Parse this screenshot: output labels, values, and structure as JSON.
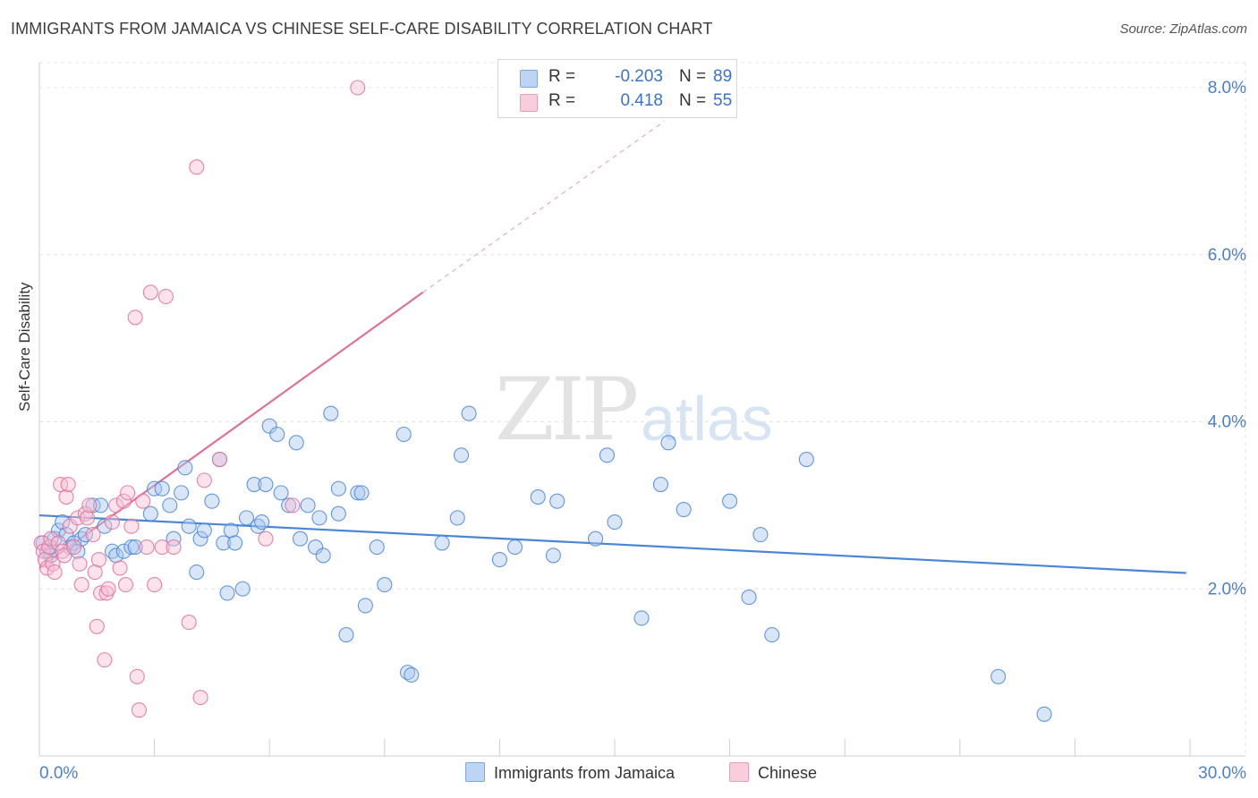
{
  "title": "IMMIGRANTS FROM JAMAICA VS CHINESE SELF-CARE DISABILITY CORRELATION CHART",
  "source": "Source: ZipAtlas.com",
  "watermark": {
    "zip": "ZIP",
    "atlas": "atlas"
  },
  "stats": [
    {
      "r_label": "R =",
      "r_value": "-0.203",
      "n_label": "N =",
      "n_value": "89",
      "color": "#9dc1ef"
    },
    {
      "r_label": "R =",
      "r_value": "0.418",
      "n_label": "N =",
      "n_value": "55",
      "color": "#f5b3c8"
    }
  ],
  "chart_data": {
    "type": "scatter",
    "title": "IMMIGRANTS FROM JAMAICA VS CHINESE SELF-CARE DISABILITY CORRELATION CHART",
    "xlabel": "",
    "ylabel": "Self-Care Disability",
    "xlim": [
      0,
      30
    ],
    "ylim": [
      0,
      8.3
    ],
    "x_tick_labels": [
      "0.0%",
      "30.0%"
    ],
    "y_ticks": [
      2,
      4,
      6,
      8
    ],
    "y_tick_labels": [
      "2.0%",
      "4.0%",
      "6.0%",
      "8.0%"
    ],
    "grid": true,
    "legend": [
      "Immigrants from Jamaica",
      "Chinese"
    ],
    "series": [
      {
        "name": "Immigrants from Jamaica",
        "color": "#4a86d8",
        "fill": "#a9c8f0",
        "trend": {
          "x0": 0,
          "y0": 2.88,
          "x1": 29.9,
          "y1": 2.19
        },
        "points": [
          [
            0.1,
            2.55
          ],
          [
            0.2,
            2.45
          ],
          [
            0.3,
            2.5
          ],
          [
            0.4,
            2.6
          ],
          [
            0.5,
            2.7
          ],
          [
            0.6,
            2.8
          ],
          [
            0.7,
            2.65
          ],
          [
            0.8,
            2.5
          ],
          [
            0.9,
            2.55
          ],
          [
            1.0,
            2.45
          ],
          [
            1.1,
            2.6
          ],
          [
            1.2,
            2.65
          ],
          [
            1.4,
            3.0
          ],
          [
            1.6,
            3.0
          ],
          [
            1.7,
            2.75
          ],
          [
            1.9,
            2.45
          ],
          [
            2.0,
            2.4
          ],
          [
            2.2,
            2.45
          ],
          [
            2.4,
            2.5
          ],
          [
            2.5,
            2.5
          ],
          [
            2.9,
            2.9
          ],
          [
            3.0,
            3.2
          ],
          [
            3.2,
            3.2
          ],
          [
            3.4,
            3.0
          ],
          [
            3.5,
            2.6
          ],
          [
            3.7,
            3.15
          ],
          [
            3.8,
            3.45
          ],
          [
            3.9,
            2.75
          ],
          [
            4.1,
            2.2
          ],
          [
            4.2,
            2.6
          ],
          [
            4.3,
            2.7
          ],
          [
            4.5,
            3.05
          ],
          [
            4.7,
            3.55
          ],
          [
            4.8,
            2.55
          ],
          [
            4.9,
            1.95
          ],
          [
            5.0,
            2.7
          ],
          [
            5.1,
            2.55
          ],
          [
            5.3,
            2.0
          ],
          [
            5.4,
            2.85
          ],
          [
            5.6,
            3.25
          ],
          [
            5.7,
            2.75
          ],
          [
            5.8,
            2.8
          ],
          [
            5.9,
            3.25
          ],
          [
            6.0,
            3.95
          ],
          [
            6.2,
            3.85
          ],
          [
            6.3,
            3.15
          ],
          [
            6.5,
            3.0
          ],
          [
            6.7,
            3.75
          ],
          [
            6.8,
            2.6
          ],
          [
            7.0,
            3.0
          ],
          [
            7.2,
            2.5
          ],
          [
            7.3,
            2.85
          ],
          [
            7.4,
            2.4
          ],
          [
            7.6,
            4.1
          ],
          [
            7.8,
            2.9
          ],
          [
            7.8,
            3.2
          ],
          [
            8.0,
            1.45
          ],
          [
            8.3,
            3.15
          ],
          [
            8.4,
            3.15
          ],
          [
            8.5,
            1.8
          ],
          [
            8.8,
            2.5
          ],
          [
            9.0,
            2.05
          ],
          [
            9.5,
            3.85
          ],
          [
            9.6,
            1.0
          ],
          [
            9.7,
            0.97
          ],
          [
            10.5,
            2.55
          ],
          [
            10.9,
            2.85
          ],
          [
            11.0,
            3.6
          ],
          [
            11.2,
            4.1
          ],
          [
            12.0,
            2.35
          ],
          [
            12.4,
            2.5
          ],
          [
            13.0,
            3.1
          ],
          [
            13.4,
            2.4
          ],
          [
            13.5,
            3.05
          ],
          [
            14.5,
            2.6
          ],
          [
            14.8,
            3.6
          ],
          [
            15.0,
            2.8
          ],
          [
            15.7,
            1.65
          ],
          [
            16.2,
            3.25
          ],
          [
            16.4,
            3.75
          ],
          [
            16.8,
            2.95
          ],
          [
            18.0,
            3.05
          ],
          [
            18.5,
            1.9
          ],
          [
            18.8,
            2.65
          ],
          [
            19.1,
            1.45
          ],
          [
            20.0,
            3.55
          ],
          [
            25.0,
            0.95
          ],
          [
            26.2,
            0.5
          ],
          [
            0.3,
            2.4
          ]
        ]
      },
      {
        "name": "Chinese",
        "color": "#e0709a",
        "fill": "#f7bfd2",
        "trend": {
          "x0": 0,
          "y0": 2.25,
          "x1": 10,
          "y1": 5.55
        },
        "trend_dashed": {
          "x0": 10,
          "y0": 5.55,
          "x1": 16.3,
          "y1": 7.6
        },
        "points": [
          [
            0.05,
            2.55
          ],
          [
            0.1,
            2.45
          ],
          [
            0.15,
            2.35
          ],
          [
            0.2,
            2.25
          ],
          [
            0.25,
            2.5
          ],
          [
            0.3,
            2.6
          ],
          [
            0.35,
            2.3
          ],
          [
            0.4,
            2.2
          ],
          [
            0.5,
            2.55
          ],
          [
            0.55,
            3.25
          ],
          [
            0.6,
            2.45
          ],
          [
            0.65,
            2.4
          ],
          [
            0.7,
            3.1
          ],
          [
            0.75,
            3.25
          ],
          [
            0.8,
            2.75
          ],
          [
            0.9,
            2.5
          ],
          [
            1.0,
            2.85
          ],
          [
            1.05,
            2.3
          ],
          [
            1.1,
            2.05
          ],
          [
            1.2,
            2.9
          ],
          [
            1.25,
            2.85
          ],
          [
            1.3,
            3.0
          ],
          [
            1.4,
            2.65
          ],
          [
            1.45,
            2.2
          ],
          [
            1.5,
            1.55
          ],
          [
            1.55,
            2.35
          ],
          [
            1.6,
            1.95
          ],
          [
            1.7,
            1.15
          ],
          [
            1.75,
            1.95
          ],
          [
            1.8,
            2.0
          ],
          [
            1.9,
            2.8
          ],
          [
            2.0,
            3.0
          ],
          [
            2.1,
            2.25
          ],
          [
            2.2,
            3.05
          ],
          [
            2.25,
            2.05
          ],
          [
            2.3,
            3.15
          ],
          [
            2.4,
            2.75
          ],
          [
            2.5,
            5.25
          ],
          [
            2.55,
            0.95
          ],
          [
            2.6,
            0.55
          ],
          [
            2.7,
            3.05
          ],
          [
            2.8,
            2.5
          ],
          [
            2.9,
            5.55
          ],
          [
            3.0,
            2.05
          ],
          [
            3.2,
            2.5
          ],
          [
            3.3,
            5.5
          ],
          [
            3.5,
            2.5
          ],
          [
            3.9,
            1.6
          ],
          [
            4.1,
            7.05
          ],
          [
            4.2,
            0.7
          ],
          [
            4.3,
            3.3
          ],
          [
            4.7,
            3.55
          ],
          [
            5.9,
            2.6
          ],
          [
            6.6,
            3.0
          ],
          [
            8.3,
            8.0
          ]
        ]
      }
    ]
  },
  "legend_bottom": [
    {
      "label": "Immigrants from Jamaica",
      "color": "#a9c8f0"
    },
    {
      "label": "Chinese",
      "color": "#f7bfd2"
    }
  ]
}
